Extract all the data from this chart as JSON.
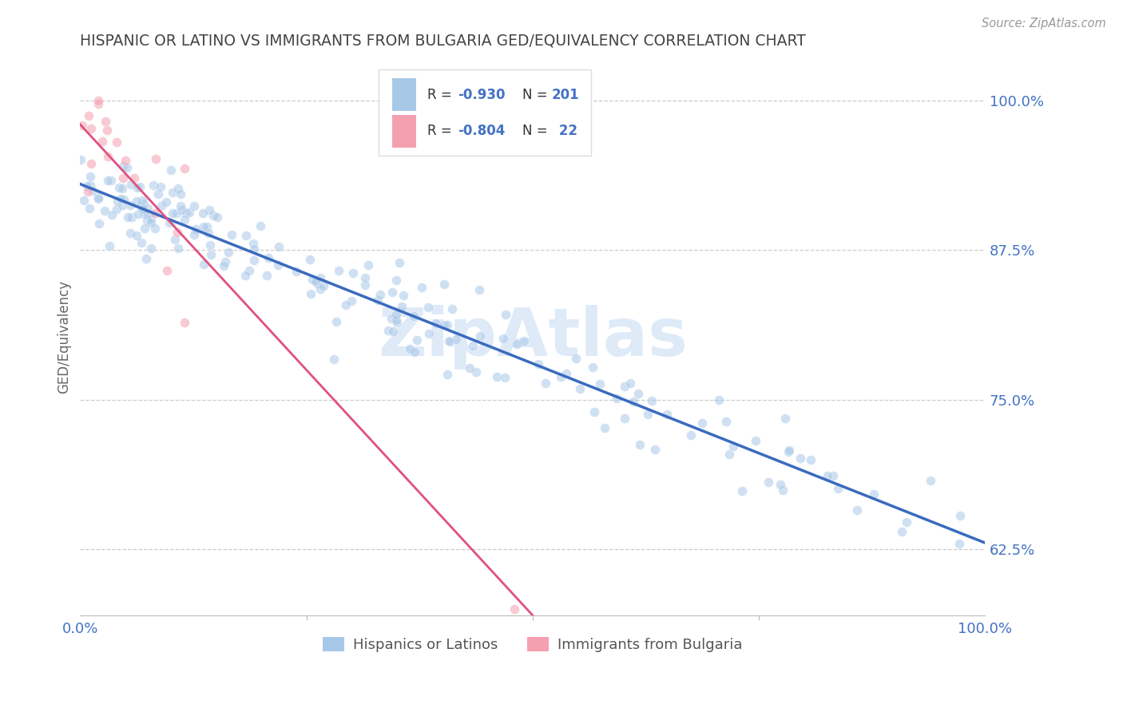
{
  "title": "HISPANIC OR LATINO VS IMMIGRANTS FROM BULGARIA GED/EQUIVALENCY CORRELATION CHART",
  "source_text": "Source: ZipAtlas.com",
  "ylabel": "GED/Equivalency",
  "legend_label1": "Hispanics or Latinos",
  "legend_label2": "Immigrants from Bulgaria",
  "blue_color": "#a8c8e8",
  "blue_line_color": "#3a6bbf",
  "pink_color": "#f4a0b0",
  "pink_line_color": "#e05080",
  "background_color": "#ffffff",
  "grid_color": "#cccccc",
  "title_color": "#444444",
  "axis_label_color": "#4472c4",
  "watermark_color": "#dce8f8",
  "scatter_alpha": 0.55,
  "scatter_size": 75,
  "xlim": [
    0.0,
    1.0
  ],
  "ylim": [
    0.57,
    1.035
  ],
  "y_tick_values": [
    0.625,
    0.75,
    0.875,
    1.0
  ],
  "y_tick_labels": [
    "62.5%",
    "75.0%",
    "87.5%",
    "100.0%"
  ],
  "x_tick_labels": [
    "0.0%",
    "100.0%"
  ],
  "blue_intercept": 0.93,
  "blue_slope": -0.295,
  "pink_intercept": 0.98,
  "pink_slope": -0.82
}
